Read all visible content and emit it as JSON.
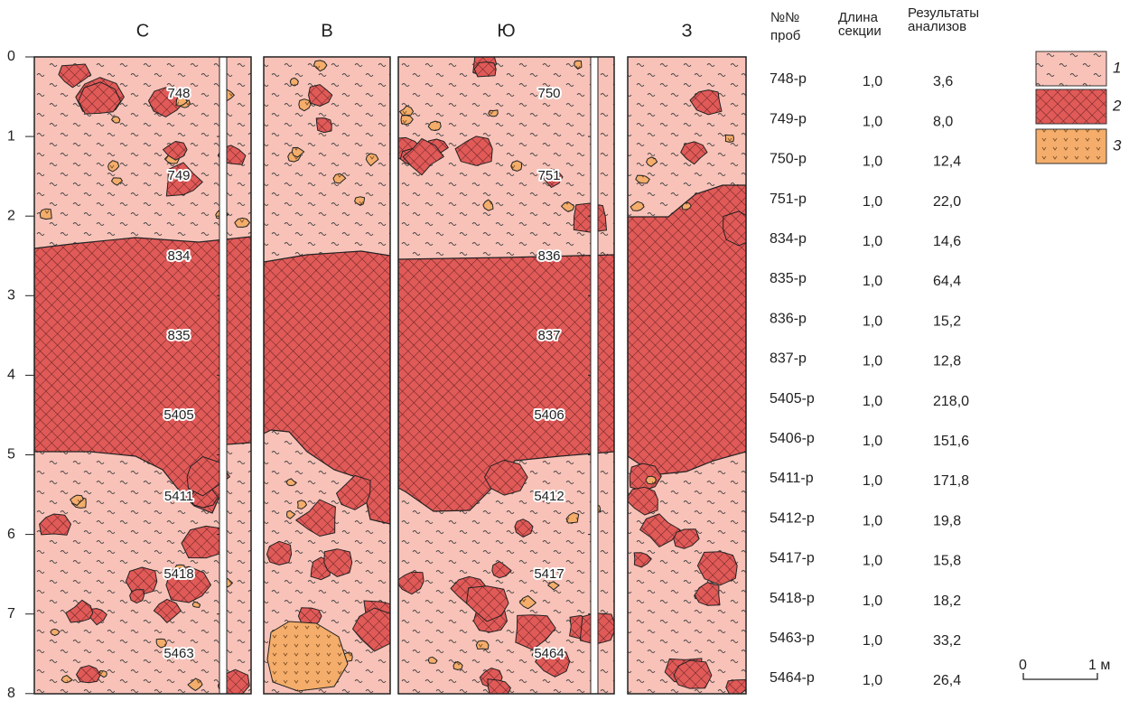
{
  "columns": [
    "С",
    "В",
    "Ю",
    "З"
  ],
  "depth_labels": [
    "0",
    "1",
    "2",
    "3",
    "4",
    "5",
    "6",
    "7",
    "8"
  ],
  "samples_s": [
    "748",
    "749",
    "834",
    "835",
    "5405",
    "5411",
    "5418",
    "5463"
  ],
  "samples_yu": [
    "750",
    "751",
    "836",
    "837",
    "5406",
    "5412",
    "5417",
    "5464"
  ],
  "table": {
    "headers": [
      [
        "№№",
        "проб"
      ],
      [
        "Длина",
        "секции"
      ],
      [
        "Результаты",
        "анализов"
      ]
    ],
    "rows": [
      [
        "748-р",
        "1,0",
        "3,6"
      ],
      [
        "749-р",
        "1,0",
        "8,0"
      ],
      [
        "750-р",
        "1,0",
        "12,4"
      ],
      [
        "751-р",
        "1,0",
        "22,0"
      ],
      [
        "834-р",
        "1,0",
        "14,6"
      ],
      [
        "835-р",
        "1,0",
        "64,4"
      ],
      [
        "836-р",
        "1,0",
        "15,2"
      ],
      [
        "837-р",
        "1,0",
        "12,8"
      ],
      [
        "5405-р",
        "1,0",
        "218,0"
      ],
      [
        "5406-р",
        "1,0",
        "151,6"
      ],
      [
        "5411-р",
        "1,0",
        "171,8"
      ],
      [
        "5412-р",
        "1,0",
        "19,8"
      ],
      [
        "5417-р",
        "1,0",
        "15,8"
      ],
      [
        "5418-р",
        "1,0",
        "18,2"
      ],
      [
        "5463-р",
        "1,0",
        "33,2"
      ],
      [
        "5464-р",
        "1,0",
        "26,4"
      ]
    ]
  },
  "legend": [
    "1",
    "2",
    "3"
  ],
  "scale": {
    "start": "0",
    "end": "1 м"
  }
}
